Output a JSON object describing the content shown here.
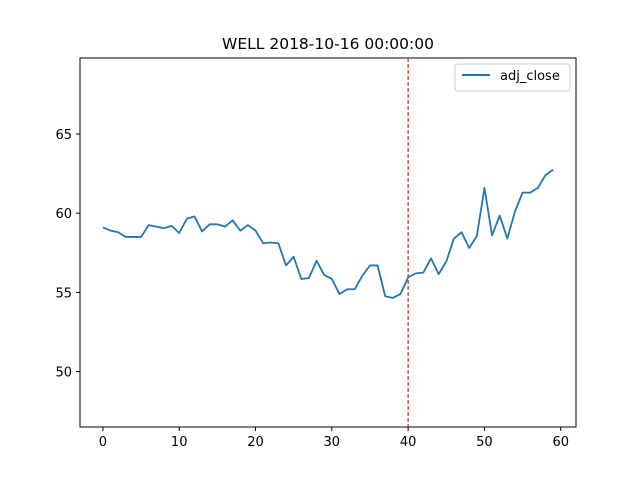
{
  "chart_data": {
    "type": "line",
    "title": "WELL 2018-10-16 00:00:00",
    "xlabel": "",
    "ylabel": "",
    "xlim": [
      -3,
      62
    ],
    "ylim": [
      46.5,
      69.8
    ],
    "xticks": [
      0,
      10,
      20,
      30,
      40,
      50,
      60
    ],
    "yticks": [
      50,
      55,
      60,
      65
    ],
    "grid": false,
    "legend_position": "top-right",
    "vline": {
      "x": 40,
      "color": "#d62728",
      "style": "dashed"
    },
    "series": [
      {
        "name": "adj_close",
        "color": "#1f77b4",
        "x": [
          0,
          1,
          2,
          3,
          4,
          5,
          6,
          7,
          8,
          9,
          10,
          11,
          12,
          13,
          14,
          15,
          16,
          17,
          18,
          19,
          20,
          21,
          22,
          23,
          24,
          25,
          26,
          27,
          28,
          29,
          30,
          31,
          32,
          33,
          34,
          35,
          36,
          37,
          38,
          39,
          40,
          41,
          42,
          43,
          44,
          45,
          46,
          47,
          48,
          49,
          50,
          51,
          52,
          53,
          54,
          55,
          56,
          57,
          58,
          59
        ],
        "values": [
          59.1,
          58.9,
          58.8,
          58.5,
          58.5,
          58.5,
          59.25,
          59.15,
          59.05,
          59.2,
          58.75,
          59.65,
          59.8,
          58.85,
          59.3,
          59.3,
          59.15,
          59.55,
          58.9,
          59.25,
          58.9,
          58.1,
          58.15,
          58.1,
          56.7,
          57.25,
          55.85,
          55.9,
          57.0,
          56.1,
          55.85,
          54.9,
          55.2,
          55.2,
          56.05,
          56.7,
          56.7,
          54.75,
          54.65,
          54.9,
          55.95,
          56.2,
          56.25,
          57.15,
          56.15,
          56.95,
          58.4,
          58.8,
          57.8,
          58.55,
          61.6,
          58.6,
          59.85,
          58.4,
          60.1,
          61.3,
          61.3,
          61.6,
          62.4,
          62.75
        ]
      }
    ]
  }
}
